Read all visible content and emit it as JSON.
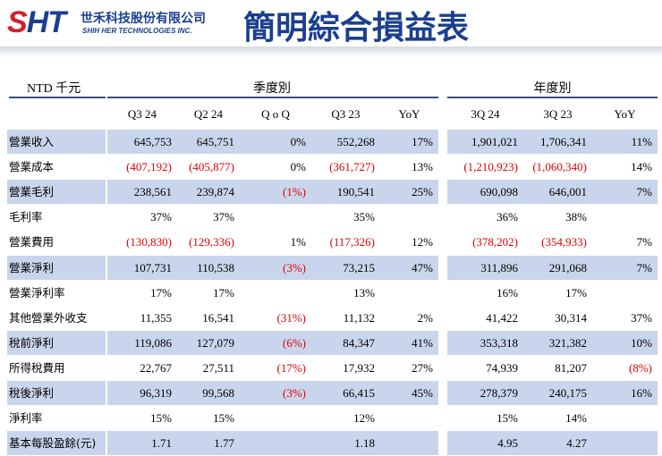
{
  "header": {
    "logo": "SHT",
    "company_cn": "世禾科技股份有限公司",
    "company_en": "SHIH HER TECHNOLOGIES INC.",
    "title": "簡明綜合損益表"
  },
  "table": {
    "unit": "NTD 千元",
    "groups": [
      "季度別",
      "年度別"
    ],
    "columns": [
      "Q3 24",
      "Q2 24",
      "Q o Q",
      "Q3 23",
      "YoY",
      "3Q 24",
      "3Q 23",
      "YoY"
    ],
    "rows": [
      [
        "營業收入",
        "645,753",
        "645,751",
        "0%",
        "552,268",
        "17%",
        "1,901,021",
        "1,706,341",
        "11%"
      ],
      [
        "營業成本",
        "(407,192)",
        "(405,877)",
        "0%",
        "(361,727)",
        "13%",
        "(1,210,923)",
        "(1,060,340)",
        "14%"
      ],
      [
        "營業毛利",
        "238,561",
        "239,874",
        "(1%)",
        "190,541",
        "25%",
        "690,098",
        "646,001",
        "7%"
      ],
      [
        "毛利率",
        "37%",
        "37%",
        null,
        "35%",
        null,
        "36%",
        "38%",
        null
      ],
      [
        "營業費用",
        "(130,830)",
        "(129,336)",
        "1%",
        "(117,326)",
        "12%",
        "(378,202)",
        "(354,933)",
        "7%"
      ],
      [
        "營業淨利",
        "107,731",
        "110,538",
        "(3%)",
        "73,215",
        "47%",
        "311,896",
        "291,068",
        "7%"
      ],
      [
        "營業淨利率",
        "17%",
        "17%",
        null,
        "13%",
        null,
        "16%",
        "17%",
        null
      ],
      [
        "其他營業外收支",
        "11,355",
        "16,541",
        "(31%)",
        "11,132",
        "2%",
        "41,422",
        "30,314",
        "37%"
      ],
      [
        "稅前淨利",
        "119,086",
        "127,079",
        "(6%)",
        "84,347",
        "41%",
        "353,318",
        "321,382",
        "10%"
      ],
      [
        "所得稅費用",
        "22,767",
        "27,511",
        "(17%)",
        "17,932",
        "27%",
        "74,939",
        "81,207",
        "(8%)"
      ],
      [
        "稅後淨利",
        "96,319",
        "99,568",
        "(3%)",
        "66,415",
        "45%",
        "278,379",
        "240,175",
        "16%"
      ],
      [
        "淨利率",
        "15%",
        "15%",
        null,
        "12%",
        null,
        "15%",
        "14%",
        null
      ],
      [
        "基本每股盈餘(元)",
        "1.71",
        "1.77",
        null,
        "1.18",
        null,
        "4.95",
        "4.27",
        null
      ]
    ]
  }
}
